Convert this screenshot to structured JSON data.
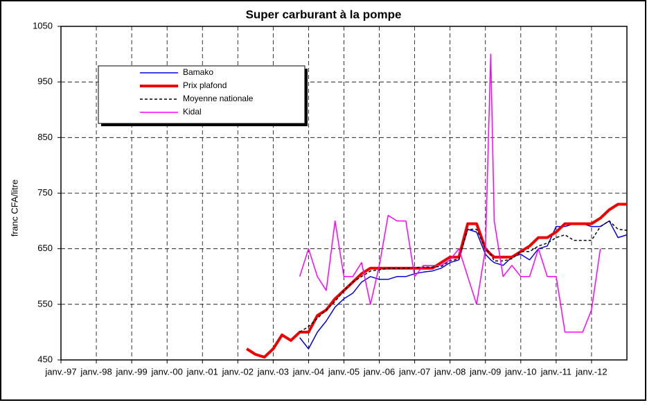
{
  "chart_data": {
    "type": "line",
    "title": "Super carburant à la pompe",
    "y_label": "franc CFA/litre",
    "x": [
      2002.25,
      2002.5,
      2002.75,
      2003,
      2003.25,
      2003.5,
      2003.75,
      2004,
      2004.25,
      2004.5,
      2004.75,
      2005,
      2005.25,
      2005.5,
      2005.75,
      2006,
      2006.25,
      2006.5,
      2006.75,
      2007,
      2007.25,
      2007.5,
      2007.75,
      2008,
      2008.25,
      2008.5,
      2008.75,
      2009,
      2009.15,
      2009.25,
      2009.5,
      2009.75,
      2010,
      2010.25,
      2010.5,
      2010.75,
      2011,
      2011.25,
      2011.5,
      2011.75,
      2012,
      2012.25,
      2012.5,
      2012.75,
      2013
    ],
    "xlim": [
      1997,
      2013
    ],
    "xticks": [
      {
        "value": 1997,
        "label": "janv.-97"
      },
      {
        "value": 1998,
        "label": "janv.-98"
      },
      {
        "value": 1999,
        "label": "janv.-99"
      },
      {
        "value": 2000,
        "label": "janv.-00"
      },
      {
        "value": 2001,
        "label": "janv.-01"
      },
      {
        "value": 2002,
        "label": "janv.-02"
      },
      {
        "value": 2003,
        "label": "janv.-03"
      },
      {
        "value": 2004,
        "label": "janv.-04"
      },
      {
        "value": 2005,
        "label": "janv.-05"
      },
      {
        "value": 2006,
        "label": "janv.-06"
      },
      {
        "value": 2007,
        "label": "janv.-07"
      },
      {
        "value": 2008,
        "label": "janv.-08"
      },
      {
        "value": 2009,
        "label": "janv.-09"
      },
      {
        "value": 2010,
        "label": "janv.-10"
      },
      {
        "value": 2011,
        "label": "janv.-11"
      },
      {
        "value": 2012,
        "label": "janv.-12"
      }
    ],
    "ylim": [
      450,
      1050
    ],
    "yticks": [
      450,
      550,
      650,
      750,
      850,
      950,
      1050
    ],
    "grid": true,
    "legend": "upper left",
    "series": [
      {
        "name": "Bamako",
        "color": "#0000dd",
        "line_width": 1.5,
        "dashed": false,
        "values": [
          null,
          null,
          null,
          null,
          null,
          null,
          490,
          470,
          500,
          520,
          545,
          560,
          570,
          590,
          600,
          595,
          595,
          600,
          600,
          605,
          608,
          610,
          615,
          625,
          630,
          685,
          680,
          640,
          630,
          625,
          620,
          635,
          640,
          630,
          650,
          655,
          690,
          690,
          695,
          695,
          690,
          690,
          700,
          670,
          675
        ]
      },
      {
        "name": "Prix plafond",
        "color": "#ee0000",
        "line_width": 4,
        "dashed": false,
        "values": [
          470,
          460,
          455,
          470,
          495,
          485,
          500,
          500,
          530,
          540,
          560,
          575,
          590,
          605,
          615,
          615,
          615,
          615,
          615,
          615,
          615,
          615,
          625,
          635,
          635,
          695,
          695,
          650,
          640,
          635,
          635,
          635,
          645,
          655,
          670,
          670,
          680,
          695,
          695,
          695,
          695,
          705,
          720,
          730,
          730
        ]
      },
      {
        "name": "Moyenne nationale",
        "color": "#000000",
        "line_width": 1.5,
        "dashed": true,
        "values": [
          null,
          null,
          null,
          null,
          null,
          null,
          500,
          510,
          525,
          540,
          555,
          575,
          590,
          600,
          610,
          612,
          615,
          615,
          615,
          616,
          617,
          617,
          618,
          628,
          632,
          685,
          685,
          650,
          640,
          628,
          628,
          632,
          645,
          645,
          655,
          660,
          670,
          675,
          665,
          665,
          665,
          690,
          700,
          685,
          683
        ]
      },
      {
        "name": "Kidal",
        "color": "#ff00ff",
        "line_width": 1.5,
        "dashed": false,
        "values": [
          null,
          null,
          null,
          null,
          null,
          null,
          600,
          650,
          600,
          575,
          700,
          600,
          600,
          625,
          550,
          620,
          710,
          700,
          700,
          600,
          620,
          620,
          620,
          630,
          650,
          600,
          550,
          650,
          1000,
          700,
          600,
          620,
          600,
          600,
          650,
          600,
          600,
          500,
          500,
          500,
          540,
          650,
          null,
          null,
          null
        ]
      }
    ]
  }
}
